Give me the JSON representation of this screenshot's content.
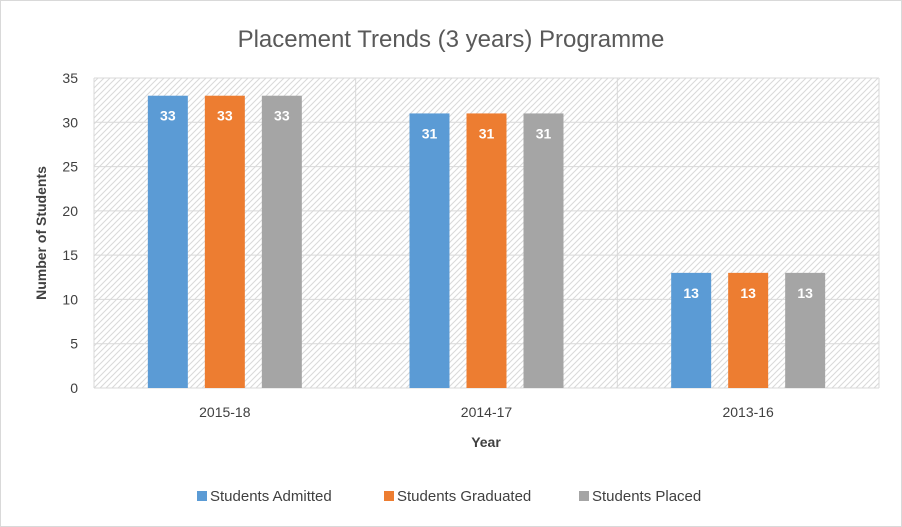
{
  "chart_data": {
    "type": "bar",
    "title": "Placement Trends (3 years) Programme",
    "xlabel": "Year",
    "ylabel": "Number of Students",
    "categories": [
      "2015-18",
      "2014-17",
      "2013-16"
    ],
    "series": [
      {
        "name": "Students Admitted",
        "values": [
          33,
          31,
          13
        ],
        "color": "#5b9bd5"
      },
      {
        "name": "Students Graduated",
        "values": [
          33,
          31,
          13
        ],
        "color": "#ed7d31"
      },
      {
        "name": "Students Placed",
        "values": [
          33,
          31,
          13
        ],
        "color": "#a5a5a5"
      }
    ],
    "ylim": [
      0,
      35
    ],
    "yticks": [
      0,
      5,
      10,
      15,
      20,
      25,
      30,
      35
    ],
    "grid": true,
    "legend_position": "bottom",
    "plot_pattern": "diagonal-hatch"
  }
}
